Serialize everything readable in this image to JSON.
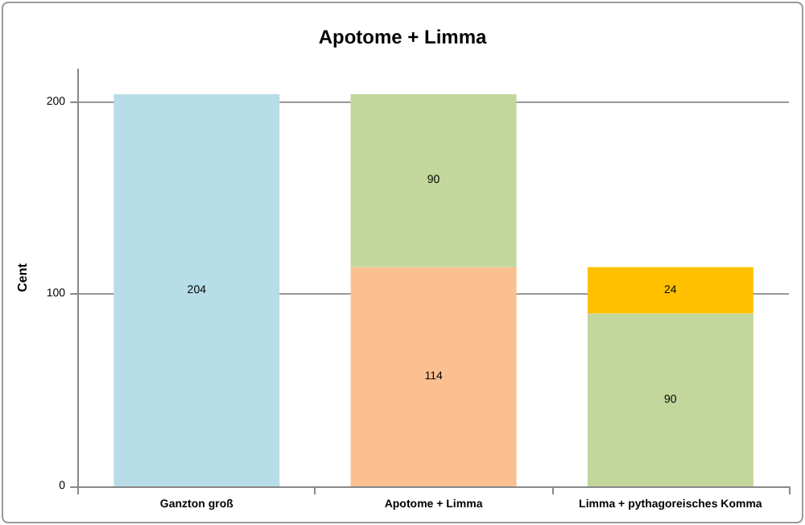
{
  "chart_data": {
    "type": "bar",
    "title": "Apotome + Limma",
    "ylabel": "Cent",
    "categories": [
      "Ganzton groß",
      "Apotome + Limma",
      "Limma + pythagoreisches Komma"
    ],
    "stacked": true,
    "series": [
      {
        "colors": [
          "#b7dde8",
          "#fac090",
          "#c3d69b"
        ],
        "values": [
          204,
          114,
          90
        ]
      },
      {
        "colors": [
          "#c3d69b",
          "#c3d69b",
          "#ffc000"
        ],
        "values": [
          null,
          90,
          24
        ]
      }
    ],
    "ylim": [
      0,
      217
    ],
    "yticks": [
      0,
      100,
      200
    ],
    "grid": "y",
    "data_labels": true
  }
}
